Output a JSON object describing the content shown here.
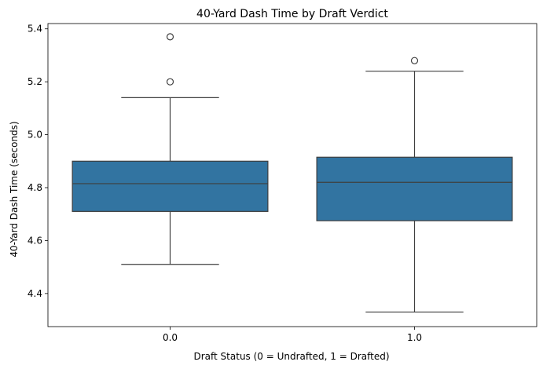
{
  "chart_data": {
    "type": "box",
    "title": "40-Yard Dash Time by Draft Verdict",
    "xlabel": "Draft Status (0 = Undrafted, 1 = Drafted)",
    "ylabel": "40-Yard Dash Time (seconds)",
    "categories": [
      "0.0",
      "1.0"
    ],
    "ylim": [
      4.275,
      5.42
    ],
    "yticks": [
      4.4,
      4.6,
      4.8,
      5.0,
      5.2,
      5.4
    ],
    "ytick_labels": [
      "4.4",
      "4.6",
      "4.8",
      "5.0",
      "5.2",
      "5.4"
    ],
    "grid": false,
    "box_color": "#3274a1",
    "line_color": "#3f3f3f",
    "boxes": [
      {
        "category": "0.0",
        "whisker_low": 4.51,
        "q1": 4.71,
        "median": 4.815,
        "q3": 4.9,
        "whisker_high": 5.14,
        "outliers": [
          5.2,
          5.37
        ]
      },
      {
        "category": "1.0",
        "whisker_low": 4.33,
        "q1": 4.675,
        "median": 4.82,
        "q3": 4.915,
        "whisker_high": 5.24,
        "outliers": [
          5.28
        ]
      }
    ]
  }
}
